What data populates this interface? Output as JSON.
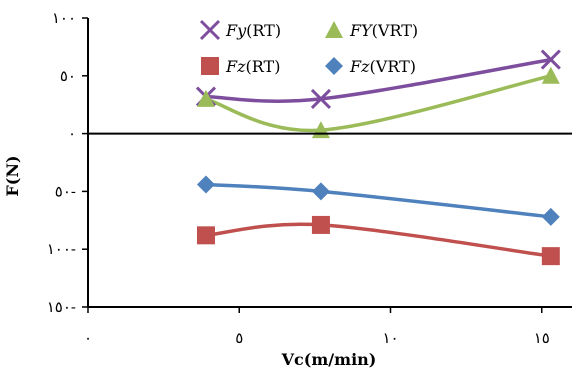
{
  "chart_data": {
    "type": "line",
    "xlabel": "Vc(m/min)",
    "ylabel": "F(N)",
    "xlim": [
      0,
      16
    ],
    "ylim": [
      -150,
      100
    ],
    "x_ticks": [
      {
        "value": 0,
        "label": "٠"
      },
      {
        "value": 5,
        "label": "٥"
      },
      {
        "value": 10,
        "label": "١٠"
      },
      {
        "value": 15,
        "label": "١٥"
      }
    ],
    "y_ticks": [
      {
        "value": 100,
        "label": "١٠٠"
      },
      {
        "value": 50,
        "label": "٥٠"
      },
      {
        "value": 0,
        "label": "٠"
      },
      {
        "value": -50,
        "label": "٥٠-"
      },
      {
        "value": -100,
        "label": "١٠٠-"
      },
      {
        "value": -150,
        "label": "١٥٠-"
      }
    ],
    "grid": false,
    "legend_position": "top",
    "series": [
      {
        "name_italic": "Fy",
        "name_rest": "(RT)",
        "color": "#7D4E9E",
        "marker": "x",
        "x": [
          3.9,
          7.7,
          15.3
        ],
        "y": [
          32,
          30,
          64
        ]
      },
      {
        "name_italic": "FY",
        "name_rest": "(VRT)",
        "color": "#9BBB59",
        "marker": "triangle",
        "x": [
          3.9,
          7.7,
          15.3
        ],
        "y": [
          30,
          3,
          50
        ]
      },
      {
        "name_italic": "Fz",
        "name_rest": "(RT)",
        "color": "#C0504D",
        "marker": "square",
        "x": [
          3.9,
          7.7,
          15.3
        ],
        "y": [
          -88,
          -79,
          -106
        ]
      },
      {
        "name_italic": "Fz",
        "name_rest": "(VRT)",
        "color": "#4F81BD",
        "marker": "diamond",
        "x": [
          3.9,
          7.7,
          15.3
        ],
        "y": [
          -44,
          -50,
          -72
        ]
      }
    ]
  }
}
